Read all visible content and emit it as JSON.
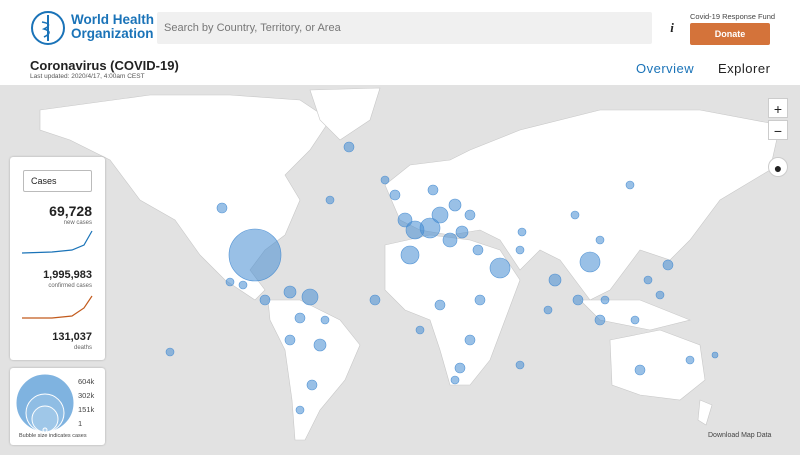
{
  "header": {
    "logo_text": [
      "World Health",
      "Organization"
    ],
    "search_placeholder": "Search by Country, Territory, or Area",
    "info": "i",
    "fund_label": "Covid-19 Response Fund",
    "donate": "Donate"
  },
  "title_bar": {
    "title": "Coronavirus (COVID-19)",
    "last_updated": "Last updated: 2020/4/17, 4:00am CEST",
    "tabs": [
      "Overview",
      "Explorer"
    ]
  },
  "map_controls": {
    "zoom_in": "+",
    "zoom_out": "−"
  },
  "stats_panel": {
    "dropdown": "Cases",
    "stats": [
      {
        "value": "69,728",
        "label": "new cases"
      },
      {
        "value": "1,995,983",
        "label": "confirmed cases"
      },
      {
        "value": "131,037",
        "label": "deaths"
      }
    ]
  },
  "legend": {
    "sizes": [
      "604k",
      "302k",
      "151k",
      "1"
    ],
    "caption": "Bubble size indicates cases"
  },
  "footer": {
    "download": "Download Map Data"
  }
}
